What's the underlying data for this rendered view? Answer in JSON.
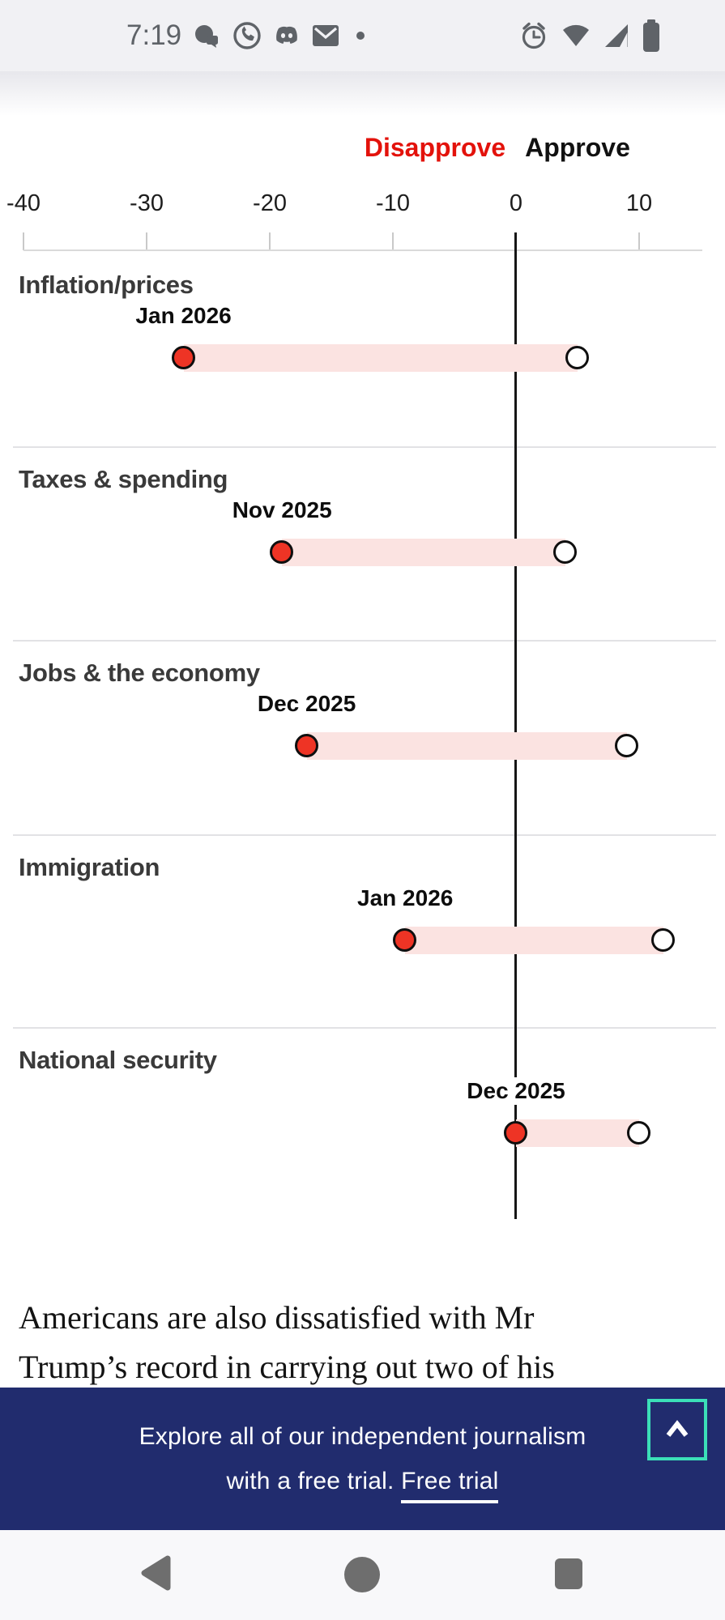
{
  "status_bar": {
    "time": "7:19",
    "notification_icons": [
      "chat-app-icon",
      "whatsapp-icon",
      "discord-icon",
      "email-icon",
      "notification-overflow-dot"
    ],
    "system_icons": [
      "alarm-icon",
      "wifi-icon",
      "cell-signal-icon",
      "battery-icon"
    ]
  },
  "chart_data": {
    "type": "dumbbell",
    "legend": [
      {
        "label": "Disapprove",
        "color": "#e3120b"
      },
      {
        "label": "Approve",
        "color": "#111111"
      }
    ],
    "x_ticks": [
      -40,
      -30,
      -20,
      -10,
      0,
      10
    ],
    "x_range": [
      -40,
      15
    ],
    "grid": false,
    "rows": [
      {
        "category": "Inflation/prices",
        "date_label": "Jan 2026",
        "disapprove": -27,
        "approve": 5
      },
      {
        "category": "Taxes & spending",
        "date_label": "Nov 2025",
        "disapprove": -19,
        "approve": 4
      },
      {
        "category": "Jobs & the economy",
        "date_label": "Dec 2025",
        "disapprove": -17,
        "approve": 9
      },
      {
        "category": "Immigration",
        "date_label": "Jan 2026",
        "disapprove": -9,
        "approve": 12
      },
      {
        "category": "National security",
        "date_label": "Dec 2025",
        "disapprove": 0,
        "approve": 10
      }
    ],
    "colors": {
      "disapprove_dot": "#ee3425",
      "approve_dot": "#ffffff",
      "band": "#fbe3e1",
      "zero_line": "#161616",
      "axis_text": "#1d1d1d"
    }
  },
  "article": {
    "lines": [
      "Americans are also dissatisfied with Mr",
      "Trump’s record in carrying out two of his"
    ]
  },
  "banner": {
    "line1": "Explore all of our independent journalism",
    "line2_prefix": "with a free trial. ",
    "cta_label": "Free trial",
    "colors": {
      "background": "#212c6e",
      "accent": "#3bdfb8"
    }
  },
  "nav_bar": {
    "icons": [
      "back-icon",
      "home-icon",
      "recents-icon"
    ]
  }
}
